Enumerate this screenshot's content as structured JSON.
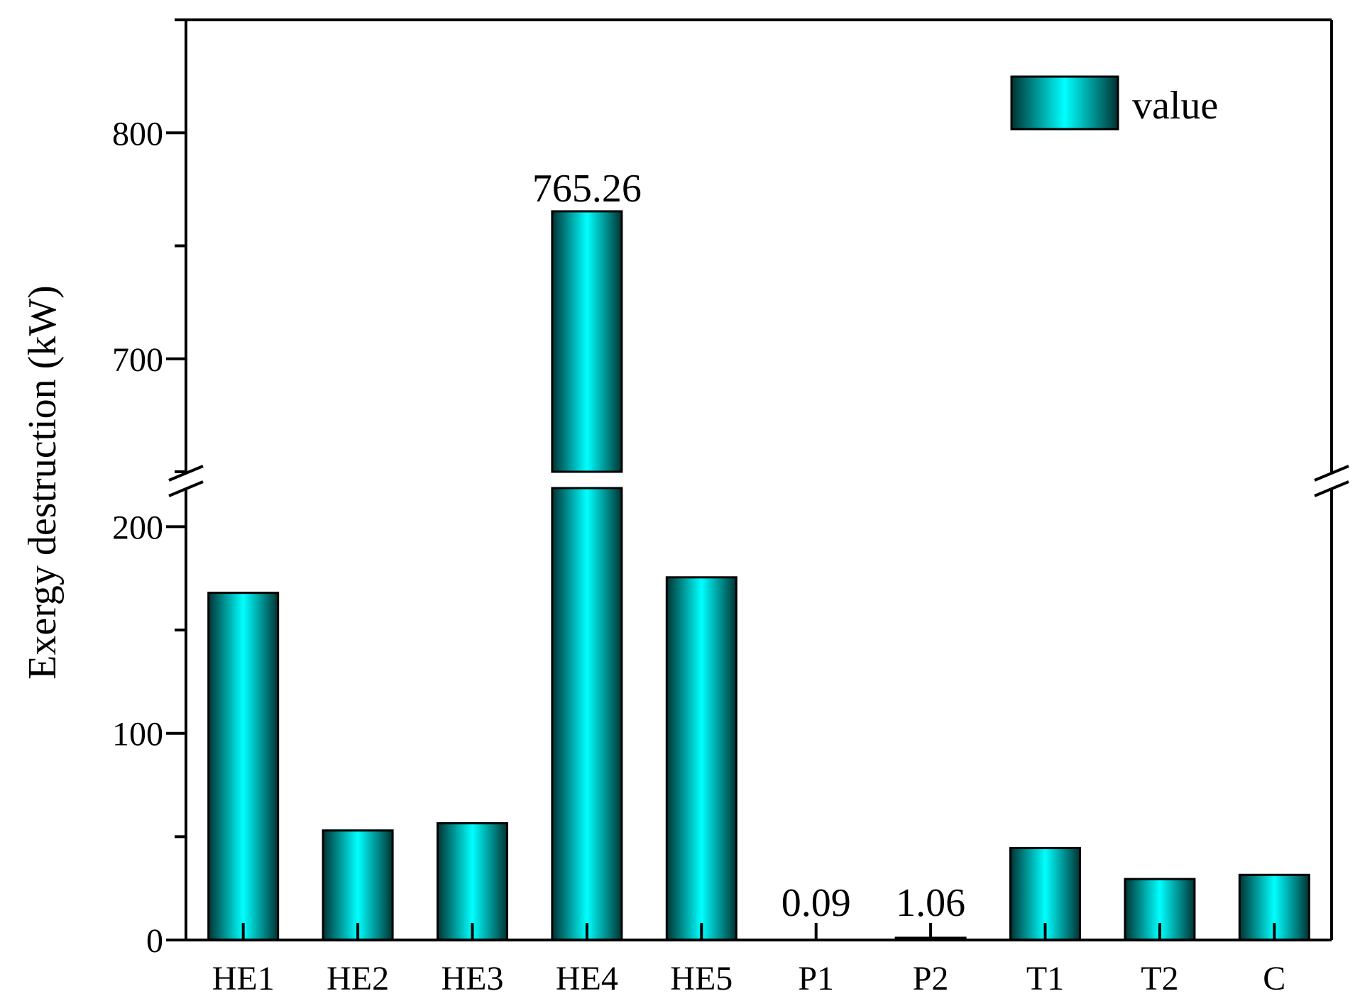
{
  "chart_data": {
    "type": "bar",
    "title": "",
    "xlabel": "",
    "ylabel": "Exergy destruction (kW)",
    "categories": [
      "HE1",
      "HE2",
      "HE3",
      "HE4",
      "HE5",
      "P1",
      "P2",
      "T1",
      "T2",
      "C"
    ],
    "series": [
      {
        "name": "value",
        "values": [
          168,
          53,
          56.5,
          765.26,
          175.5,
          0.09,
          1.06,
          44.5,
          29.5,
          31.5
        ]
      }
    ],
    "y_axis": {
      "broken": true,
      "segments": [
        {
          "range": [
            0,
            218
          ],
          "major_ticks": [
            0,
            100,
            200
          ],
          "minor_step": 50
        },
        {
          "range": [
            650,
            850
          ],
          "major_ticks": [
            700,
            800
          ],
          "minor_step": 50
        }
      ]
    },
    "data_labels": [
      {
        "category": "HE4",
        "text": "765.26"
      },
      {
        "category": "P1",
        "text": "0.09"
      },
      {
        "category": "P2",
        "text": "1.06"
      }
    ],
    "tick_labels": [
      "0",
      "100",
      "200",
      "700",
      "800"
    ],
    "legend": {
      "position": "top-right",
      "entries": [
        "value"
      ]
    },
    "grid": false,
    "colors": {
      "bar_center": "#00ffff",
      "bar_edge": "#003333",
      "outline": "#000000"
    }
  }
}
